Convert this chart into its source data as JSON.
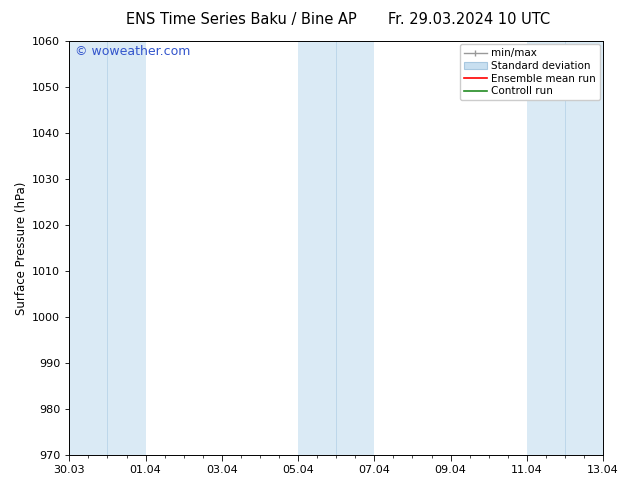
{
  "title_left": "ENS Time Series Baku / Bine AP",
  "title_right": "Fr. 29.03.2024 10 UTC",
  "ylabel": "Surface Pressure (hPa)",
  "ylim": [
    970,
    1060
  ],
  "yticks": [
    970,
    980,
    990,
    1000,
    1010,
    1020,
    1030,
    1040,
    1050,
    1060
  ],
  "xlim": [
    0,
    14
  ],
  "xtick_labels": [
    "30.03",
    "01.04",
    "03.04",
    "05.04",
    "07.04",
    "09.04",
    "11.04",
    "13.04"
  ],
  "xtick_positions": [
    0,
    2,
    4,
    6,
    8,
    10,
    12,
    14
  ],
  "shaded_bands": [
    {
      "x_start": 0,
      "x_end": 2
    },
    {
      "x_start": 6,
      "x_end": 8
    },
    {
      "x_start": 12,
      "x_end": 14
    }
  ],
  "shaded_color": "#daeaf5",
  "band_divider_color": "#b8d4e8",
  "background_color": "#ffffff",
  "watermark_text": "© woweather.com",
  "watermark_color": "#3355cc",
  "legend_items": [
    {
      "label": "min/max",
      "lcolor": "#999999",
      "type": "errorbar"
    },
    {
      "label": "Standard deviation",
      "fcolor": "#c8dff0",
      "ecolor": "#a8c8e0",
      "type": "box"
    },
    {
      "label": "Ensemble mean run",
      "lcolor": "#ff0000",
      "type": "line"
    },
    {
      "label": "Controll run",
      "lcolor": "#228B22",
      "type": "line"
    }
  ],
  "title_fontsize": 10.5,
  "tick_fontsize": 8,
  "legend_fontsize": 7.5,
  "ylabel_fontsize": 8.5,
  "watermark_fontsize": 9
}
